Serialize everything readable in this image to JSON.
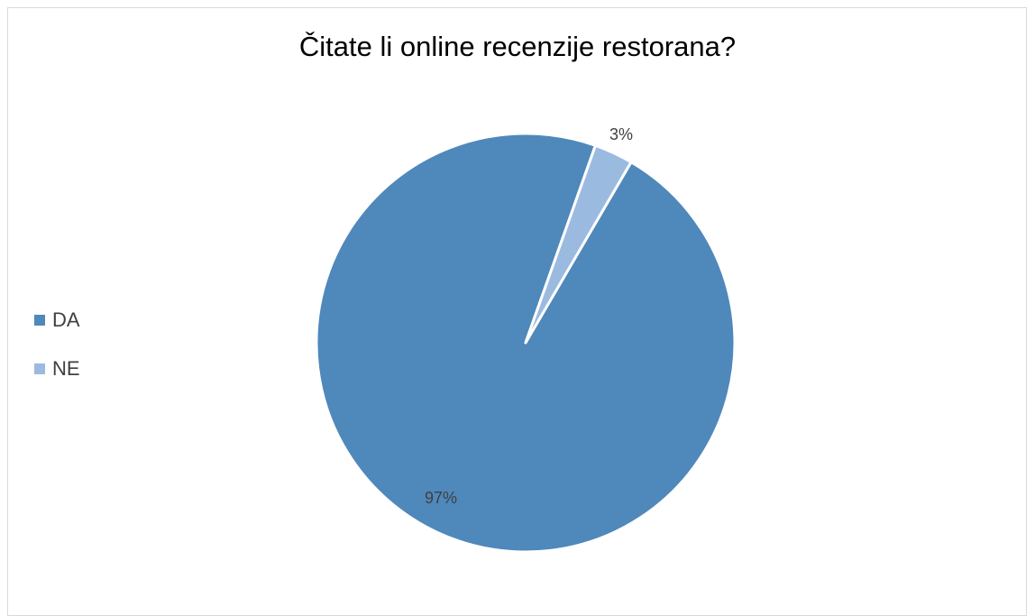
{
  "chart_data": {
    "type": "pie",
    "title": "Čitate li online recenzije restorana?",
    "categories": [
      "DA",
      "NE"
    ],
    "values": [
      97,
      3
    ],
    "data_labels": [
      "97%",
      "3%"
    ],
    "colors": [
      "#4f88bb",
      "#9bbae0"
    ],
    "legend_position": "left",
    "slice_border_color": "#ffffff"
  }
}
